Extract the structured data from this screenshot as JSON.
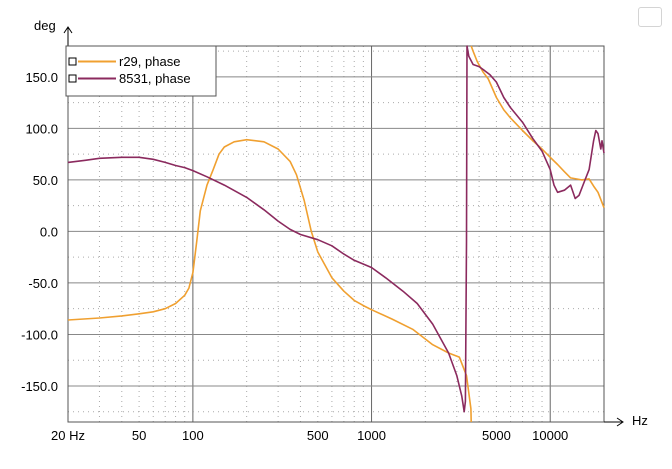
{
  "chart_data": {
    "type": "line",
    "xscale": "log",
    "xlim": [
      20,
      20000
    ],
    "ylim": [
      -185,
      180
    ],
    "xlabel": "Hz",
    "ylabel": "deg",
    "x_tick_labels": [
      {
        "value": 20,
        "label": "20 Hz"
      },
      {
        "value": 50,
        "label": "50"
      },
      {
        "value": 100,
        "label": "100"
      },
      {
        "value": 500,
        "label": "500"
      },
      {
        "value": 1000,
        "label": "1000"
      },
      {
        "value": 5000,
        "label": "5000"
      },
      {
        "value": 10000,
        "label": "10000"
      }
    ],
    "y_tick_labels": [
      {
        "value": 150,
        "label": "150.0"
      },
      {
        "value": 100,
        "label": "100.0"
      },
      {
        "value": 50,
        "label": "50.0"
      },
      {
        "value": 0,
        "label": "0.0"
      },
      {
        "value": -50,
        "label": "-50.0"
      },
      {
        "value": -100,
        "label": "-100.0"
      },
      {
        "value": -150,
        "label": "-150.0"
      }
    ],
    "grid": true,
    "legend_position": "top-left",
    "series": [
      {
        "name": "r29, phase",
        "color": "#f0a030",
        "points": [
          [
            20,
            -86
          ],
          [
            30,
            -84
          ],
          [
            40,
            -82
          ],
          [
            50,
            -80
          ],
          [
            60,
            -78
          ],
          [
            70,
            -75
          ],
          [
            80,
            -70
          ],
          [
            90,
            -62
          ],
          [
            95,
            -55
          ],
          [
            100,
            -40
          ],
          [
            105,
            -10
          ],
          [
            110,
            20
          ],
          [
            120,
            45
          ],
          [
            130,
            60
          ],
          [
            140,
            75
          ],
          [
            150,
            82
          ],
          [
            170,
            87
          ],
          [
            200,
            89
          ],
          [
            250,
            87
          ],
          [
            300,
            80
          ],
          [
            350,
            68
          ],
          [
            380,
            55
          ],
          [
            420,
            30
          ],
          [
            460,
            0
          ],
          [
            500,
            -20
          ],
          [
            600,
            -45
          ],
          [
            700,
            -58
          ],
          [
            800,
            -67
          ],
          [
            900,
            -72
          ],
          [
            1000,
            -76
          ],
          [
            1300,
            -85
          ],
          [
            1700,
            -95
          ],
          [
            2200,
            -110
          ],
          [
            2700,
            -118
          ],
          [
            3100,
            -122
          ],
          [
            3400,
            -140
          ],
          [
            3600,
            -172
          ],
          [
            3610,
            180
          ],
          [
            3700,
            175
          ],
          [
            3900,
            165
          ],
          [
            4200,
            155
          ],
          [
            4500,
            148
          ],
          [
            5000,
            130
          ],
          [
            5500,
            118
          ],
          [
            6000,
            110
          ],
          [
            7000,
            98
          ],
          [
            8000,
            88
          ],
          [
            9000,
            80
          ],
          [
            10000,
            72
          ],
          [
            11000,
            65
          ],
          [
            12000,
            58
          ],
          [
            13000,
            52
          ],
          [
            15000,
            50
          ],
          [
            16500,
            51
          ],
          [
            17500,
            44
          ],
          [
            18500,
            38
          ],
          [
            20000,
            23
          ]
        ]
      },
      {
        "name": "8531, phase",
        "color": "#8b2a5e",
        "points": [
          [
            20,
            67
          ],
          [
            25,
            69
          ],
          [
            30,
            71
          ],
          [
            40,
            72
          ],
          [
            50,
            72
          ],
          [
            60,
            70
          ],
          [
            70,
            67
          ],
          [
            80,
            64
          ],
          [
            90,
            62
          ],
          [
            100,
            59
          ],
          [
            120,
            53
          ],
          [
            150,
            45
          ],
          [
            200,
            33
          ],
          [
            250,
            21
          ],
          [
            300,
            10
          ],
          [
            350,
            2
          ],
          [
            400,
            -3
          ],
          [
            500,
            -8
          ],
          [
            600,
            -14
          ],
          [
            700,
            -22
          ],
          [
            800,
            -28
          ],
          [
            1000,
            -35
          ],
          [
            1200,
            -45
          ],
          [
            1500,
            -58
          ],
          [
            1800,
            -70
          ],
          [
            2200,
            -90
          ],
          [
            2700,
            -118
          ],
          [
            3000,
            -140
          ],
          [
            3200,
            -160
          ],
          [
            3300,
            -175
          ],
          [
            3350,
            -165
          ],
          [
            3400,
            -10
          ],
          [
            3420,
            180
          ],
          [
            3500,
            170
          ],
          [
            3700,
            162
          ],
          [
            4000,
            160
          ],
          [
            4300,
            156
          ],
          [
            4600,
            152
          ],
          [
            5000,
            145
          ],
          [
            5500,
            130
          ],
          [
            6000,
            120
          ],
          [
            7000,
            106
          ],
          [
            8000,
            90
          ],
          [
            9000,
            78
          ],
          [
            10000,
            60
          ],
          [
            10500,
            45
          ],
          [
            11000,
            38
          ],
          [
            12000,
            40
          ],
          [
            13000,
            45
          ],
          [
            13800,
            32
          ],
          [
            14500,
            35
          ],
          [
            15500,
            48
          ],
          [
            16500,
            60
          ],
          [
            17500,
            88
          ],
          [
            18000,
            98
          ],
          [
            18500,
            95
          ],
          [
            19200,
            80
          ],
          [
            19500,
            88
          ],
          [
            20000,
            76
          ]
        ]
      }
    ]
  }
}
